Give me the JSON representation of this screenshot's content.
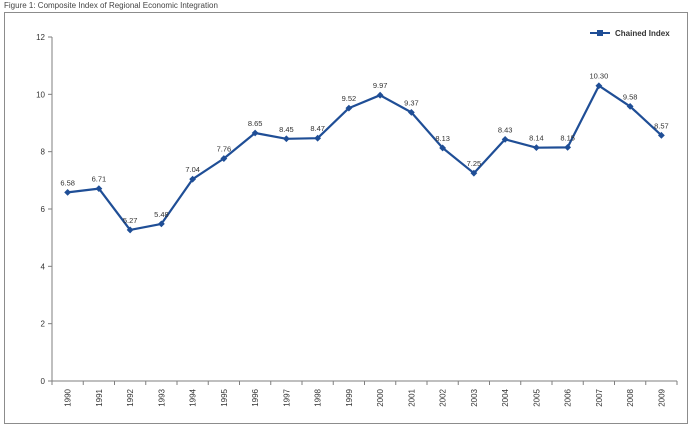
{
  "figure_title": "Figure 1: Composite Index of Regional Economic Integration",
  "colors": {
    "series": "#1f4e96",
    "axis": "#7f7f7f",
    "text": "#333333"
  },
  "chart_data": {
    "type": "line",
    "title": "",
    "xlabel": "",
    "ylabel": "",
    "x": [
      "1990",
      "1991",
      "1992",
      "1993",
      "1994",
      "1995",
      "1996",
      "1997",
      "1998",
      "1999",
      "2000",
      "2001",
      "2002",
      "2003",
      "2004",
      "2005",
      "2006",
      "2007",
      "2008",
      "2009"
    ],
    "series": [
      {
        "name": "Chained Index",
        "values": [
          6.58,
          6.71,
          5.27,
          5.48,
          7.04,
          7.76,
          8.65,
          8.45,
          8.47,
          9.52,
          9.97,
          9.37,
          8.13,
          7.25,
          8.43,
          8.14,
          8.15,
          10.3,
          9.58,
          8.57
        ],
        "labels": [
          "6.58",
          "6.71",
          "5.27",
          "5.48",
          "7.04",
          "7.76",
          "8.65",
          "8.45",
          "8.47",
          "9.52",
          "9.97",
          "9.37",
          "8.13",
          "7.25",
          "8.43",
          "8.14",
          "8.15",
          "10.30",
          "9.58",
          "8.57"
        ],
        "marker": "diamond"
      }
    ],
    "yticks": [
      0,
      2,
      4,
      6,
      8,
      10,
      12
    ],
    "ylim": [
      0,
      12
    ],
    "grid": false,
    "legend": "top-right"
  }
}
